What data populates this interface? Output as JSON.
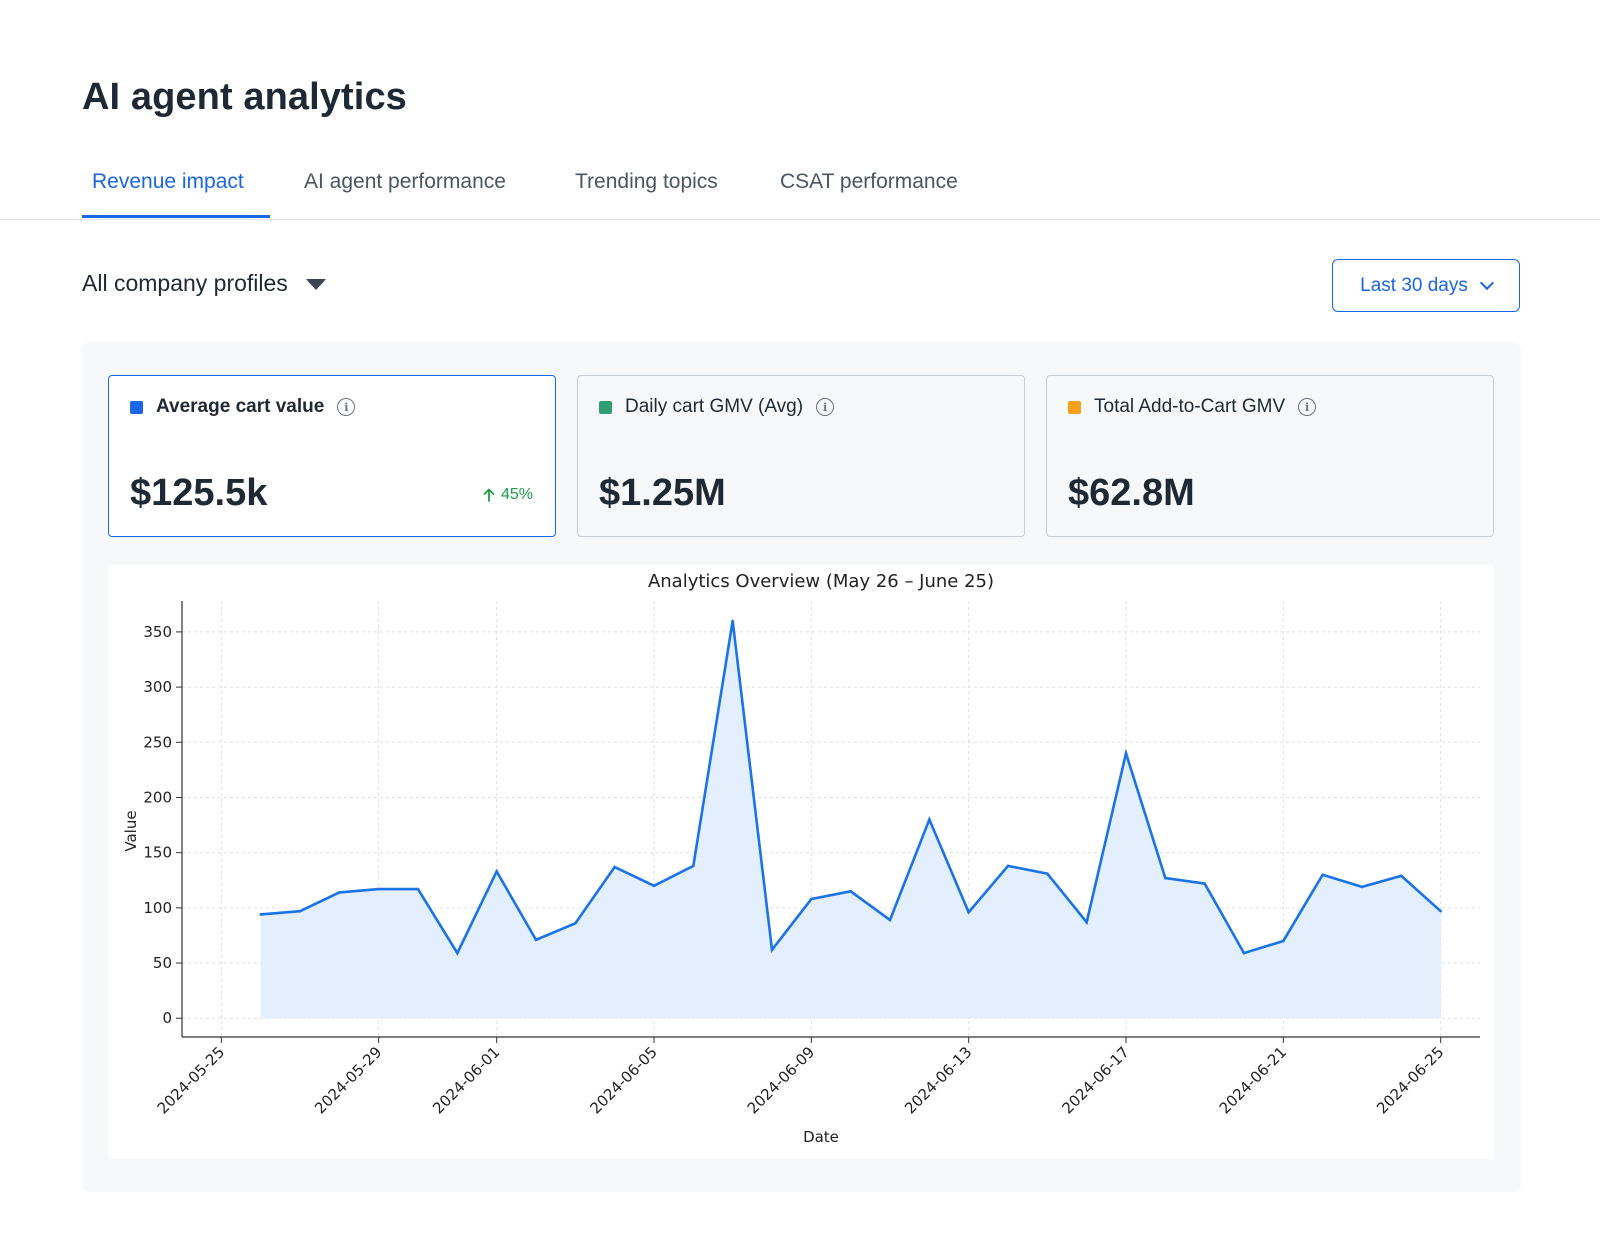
{
  "header": {
    "title": "AI agent analytics"
  },
  "tabs": [
    {
      "label": "Revenue impact",
      "active": true
    },
    {
      "label": "AI agent performance",
      "active": false
    },
    {
      "label": "Trending topics",
      "active": false
    },
    {
      "label": "CSAT performance",
      "active": false
    }
  ],
  "filters": {
    "profile_label": "All company profiles",
    "date_range_label": "Last 30 days"
  },
  "metrics": [
    {
      "label": "Average cart value",
      "value": "$125.5k",
      "color": "#1a66e8",
      "delta": "45%",
      "delta_direction": "up",
      "selected": true
    },
    {
      "label": "Daily cart GMV (Avg)",
      "value": "$1.25M",
      "color": "#2f9e73",
      "selected": false
    },
    {
      "label": "Total Add-to-Cart GMV",
      "value": "$62.8M",
      "color": "#f6a21c",
      "selected": false
    }
  ],
  "icons": {
    "info": "info-icon",
    "delta": "arrow-up-icon",
    "profile_caret": "caret-down-icon",
    "date_chevron": "chevron-down-icon"
  },
  "colors": {
    "accent": "#1a66e8",
    "positive": "#1e9b4b",
    "series_line": "#1a73e8",
    "series_fill": "#e3effc"
  },
  "chart_data": {
    "type": "area",
    "title": "Analytics Overview (May 26 – June 25)",
    "xlabel": "Date",
    "ylabel": "Value",
    "x": [
      "2024-05-26",
      "2024-05-27",
      "2024-05-28",
      "2024-05-29",
      "2024-05-30",
      "2024-05-31",
      "2024-06-01",
      "2024-06-02",
      "2024-06-03",
      "2024-06-04",
      "2024-06-05",
      "2024-06-06",
      "2024-06-07",
      "2024-06-08",
      "2024-06-09",
      "2024-06-10",
      "2024-06-11",
      "2024-06-12",
      "2024-06-13",
      "2024-06-14",
      "2024-06-15",
      "2024-06-16",
      "2024-06-17",
      "2024-06-18",
      "2024-06-19",
      "2024-06-20",
      "2024-06-21",
      "2024-06-22",
      "2024-06-23",
      "2024-06-24",
      "2024-06-25"
    ],
    "values": [
      94,
      97,
      114,
      117,
      117,
      59,
      133,
      71,
      86,
      137,
      120,
      138,
      360,
      62,
      108,
      115,
      89,
      180,
      96,
      138,
      131,
      87,
      240,
      127,
      122,
      59,
      70,
      130,
      119,
      129,
      97
    ],
    "xticks": [
      "2024-05-25",
      "2024-05-29",
      "2024-06-01",
      "2024-06-05",
      "2024-06-09",
      "2024-06-13",
      "2024-06-17",
      "2024-06-21",
      "2024-06-25"
    ],
    "yticks": [
      0,
      50,
      100,
      150,
      200,
      250,
      300,
      350
    ],
    "ylim": [
      -17,
      378
    ],
    "xlim": [
      "2024-05-24",
      "2024-06-26"
    ],
    "grid": true,
    "legend": false
  }
}
